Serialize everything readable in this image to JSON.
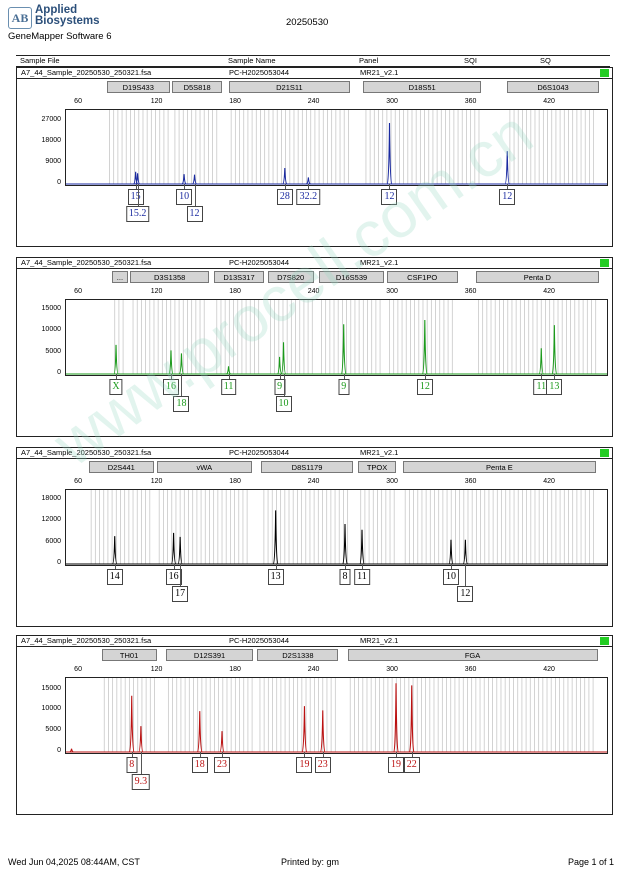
{
  "header": {
    "logo_mark": "AB",
    "brand_line1": "Applied",
    "brand_line2": "Biosystems",
    "software": "GeneMapper Software 6",
    "title": "20250530"
  },
  "columns": [
    "Sample File",
    "Sample Name",
    "Panel",
    "SQI",
    "SQ"
  ],
  "footer": {
    "datetime": "Wed Jun 04,2025 08:44AM, CST",
    "printed_by": "Printed by: gm",
    "page": "Page 1 of 1"
  },
  "watermark": "www.procell.com.cn",
  "chart_data": [
    {
      "type": "line",
      "sample_file": "A7_44_Sample_20250530_250321.fsa",
      "sample_name": "PC-H2025053044",
      "panel": "MR21_v2.1",
      "color": "#1a2aa0",
      "x_ticks": [
        60,
        120,
        180,
        240,
        300,
        360,
        420
      ],
      "xlim": [
        50,
        465
      ],
      "ylim": [
        0,
        32000
      ],
      "y_ticks": [
        0,
        9000,
        18000,
        27000
      ],
      "y_tick_labels": [
        "0",
        "9000",
        "18000",
        "27000"
      ],
      "markers": [
        {
          "name": "D19S433",
          "range": [
            82,
            130
          ]
        },
        {
          "name": "D5S818",
          "range": [
            132,
            170
          ]
        },
        {
          "name": "D21S11",
          "range": [
            175,
            268
          ]
        },
        {
          "name": "D18S51",
          "range": [
            278,
            368
          ]
        },
        {
          "name": "D6S1043",
          "range": [
            388,
            458
          ]
        }
      ],
      "peaks": [
        {
          "size": 104,
          "height": 5200
        },
        {
          "size": 105.5,
          "height": 4600
        },
        {
          "size": 141,
          "height": 4200
        },
        {
          "size": 149,
          "height": 4000
        },
        {
          "size": 218,
          "height": 6800
        },
        {
          "size": 236,
          "height": 2800
        },
        {
          "size": 298,
          "height": 26000
        },
        {
          "size": 388,
          "height": 14000
        }
      ],
      "alleles": [
        {
          "label": "15",
          "size": 104,
          "row": 0
        },
        {
          "label": "15.2",
          "size": 105.5,
          "row": 1
        },
        {
          "label": "10",
          "size": 141,
          "row": 0
        },
        {
          "label": "12",
          "size": 149,
          "row": 1
        },
        {
          "label": "28",
          "size": 218,
          "row": 0
        },
        {
          "label": "32.2",
          "size": 236,
          "row": 0
        },
        {
          "label": "12",
          "size": 298,
          "row": 0
        },
        {
          "label": "12",
          "size": 388,
          "row": 0
        }
      ]
    },
    {
      "type": "line",
      "sample_file": "A7_44_Sample_20250530_250321.fsa",
      "sample_name": "PC-H2025053044",
      "panel": "MR21_v2.1",
      "color": "#1b9a1b",
      "x_ticks": [
        60,
        120,
        180,
        240,
        300,
        360,
        420
      ],
      "xlim": [
        50,
        465
      ],
      "ylim": [
        0,
        17500
      ],
      "y_ticks": [
        0,
        5000,
        10000,
        15000
      ],
      "y_tick_labels": [
        "0",
        "5000",
        "10000",
        "15000"
      ],
      "markers": [
        {
          "name": "...",
          "range": [
            86,
            98
          ]
        },
        {
          "name": "D3S1358",
          "range": [
            100,
            160
          ]
        },
        {
          "name": "D13S317",
          "range": [
            164,
            202
          ]
        },
        {
          "name": "D7S820",
          "range": [
            205,
            240
          ]
        },
        {
          "name": "D16S539",
          "range": [
            244,
            294
          ]
        },
        {
          "name": "CSF1PO",
          "range": [
            296,
            350
          ]
        },
        {
          "name": "Penta D",
          "range": [
            364,
            458
          ]
        }
      ],
      "peaks": [
        {
          "size": 89,
          "height": 6800
        },
        {
          "size": 131,
          "height": 5500
        },
        {
          "size": 139,
          "height": 4800
        },
        {
          "size": 175,
          "height": 1800
        },
        {
          "size": 214,
          "height": 4000
        },
        {
          "size": 217,
          "height": 7400
        },
        {
          "size": 263,
          "height": 11600
        },
        {
          "size": 325,
          "height": 12600
        },
        {
          "size": 414,
          "height": 6000
        },
        {
          "size": 424,
          "height": 11400
        }
      ],
      "alleles": [
        {
          "label": "X",
          "size": 89,
          "row": 0
        },
        {
          "label": "16",
          "size": 131,
          "row": 0
        },
        {
          "label": "18",
          "size": 139,
          "row": 1
        },
        {
          "label": "11",
          "size": 175,
          "row": 0
        },
        {
          "label": "9",
          "size": 214,
          "row": 0
        },
        {
          "label": "10",
          "size": 217,
          "row": 1
        },
        {
          "label": "9",
          "size": 263,
          "row": 0
        },
        {
          "label": "12",
          "size": 325,
          "row": 0
        },
        {
          "label": "11",
          "size": 414,
          "row": 0
        },
        {
          "label": "13",
          "size": 424,
          "row": 0
        }
      ]
    },
    {
      "type": "line",
      "sample_file": "A7_44_Sample_20250530_250321.fsa",
      "sample_name": "PC-H2025053044",
      "panel": "MR21_v2.1",
      "color": "#000000",
      "x_ticks": [
        60,
        120,
        180,
        240,
        300,
        360,
        420
      ],
      "xlim": [
        50,
        465
      ],
      "ylim": [
        0,
        21000
      ],
      "y_ticks": [
        0,
        6000,
        12000,
        18000
      ],
      "y_tick_labels": [
        "0",
        "6000",
        "12000",
        "18000"
      ],
      "markers": [
        {
          "name": "D2S441",
          "range": [
            68,
            118
          ]
        },
        {
          "name": "vWA",
          "range": [
            120,
            193
          ]
        },
        {
          "name": "D8S1179",
          "range": [
            200,
            270
          ]
        },
        {
          "name": "TPOX",
          "range": [
            274,
            303
          ]
        },
        {
          "name": "Penta E",
          "range": [
            308,
            456
          ]
        }
      ],
      "peaks": [
        {
          "size": 88,
          "height": 7800
        },
        {
          "size": 133,
          "height": 8700
        },
        {
          "size": 138,
          "height": 7600
        },
        {
          "size": 211,
          "height": 15000
        },
        {
          "size": 264,
          "height": 11200
        },
        {
          "size": 277,
          "height": 9600
        },
        {
          "size": 345,
          "height": 6800
        },
        {
          "size": 356,
          "height": 6800
        }
      ],
      "alleles": [
        {
          "label": "14",
          "size": 88,
          "row": 0
        },
        {
          "label": "16",
          "size": 133,
          "row": 0
        },
        {
          "label": "17",
          "size": 138,
          "row": 1
        },
        {
          "label": "13",
          "size": 211,
          "row": 0
        },
        {
          "label": "8",
          "size": 264,
          "row": 0
        },
        {
          "label": "11",
          "size": 277,
          "row": 0
        },
        {
          "label": "10",
          "size": 345,
          "row": 0
        },
        {
          "label": "12",
          "size": 356,
          "row": 1
        }
      ]
    },
    {
      "type": "line",
      "sample_file": "A7_44_Sample_20250530_250321.fsa",
      "sample_name": "PC-H2025053044",
      "panel": "MR21_v2.1",
      "color": "#bb1111",
      "x_ticks": [
        60,
        120,
        180,
        240,
        300,
        360,
        420
      ],
      "xlim": [
        50,
        465
      ],
      "ylim": [
        0,
        18000
      ],
      "y_ticks": [
        0,
        5000,
        10000,
        15000
      ],
      "y_tick_labels": [
        "0",
        "5000",
        "10000",
        "15000"
      ],
      "markers": [
        {
          "name": "TH01",
          "range": [
            78,
            120
          ]
        },
        {
          "name": "D12S391",
          "range": [
            127,
            194
          ]
        },
        {
          "name": "D2S1338",
          "range": [
            197,
            259
          ]
        },
        {
          "name": "FGA",
          "range": [
            266,
            457
          ]
        }
      ],
      "peaks": [
        {
          "size": 101,
          "height": 13500
        },
        {
          "size": 108,
          "height": 6200
        },
        {
          "size": 153,
          "height": 9800
        },
        {
          "size": 170,
          "height": 5000
        },
        {
          "size": 233,
          "height": 11000
        },
        {
          "size": 247,
          "height": 10000
        },
        {
          "size": 303,
          "height": 16500
        },
        {
          "size": 315,
          "height": 16000
        },
        {
          "size": 55,
          "height": 800
        }
      ],
      "alleles": [
        {
          "label": "8",
          "size": 101,
          "row": 0
        },
        {
          "label": "9.3",
          "size": 108,
          "row": 1
        },
        {
          "label": "18",
          "size": 153,
          "row": 0
        },
        {
          "label": "23",
          "size": 170,
          "row": 0
        },
        {
          "label": "19",
          "size": 233,
          "row": 0
        },
        {
          "label": "23",
          "size": 247,
          "row": 0
        },
        {
          "label": "19",
          "size": 303,
          "row": 0
        },
        {
          "label": "22",
          "size": 315,
          "row": 0
        }
      ]
    }
  ]
}
